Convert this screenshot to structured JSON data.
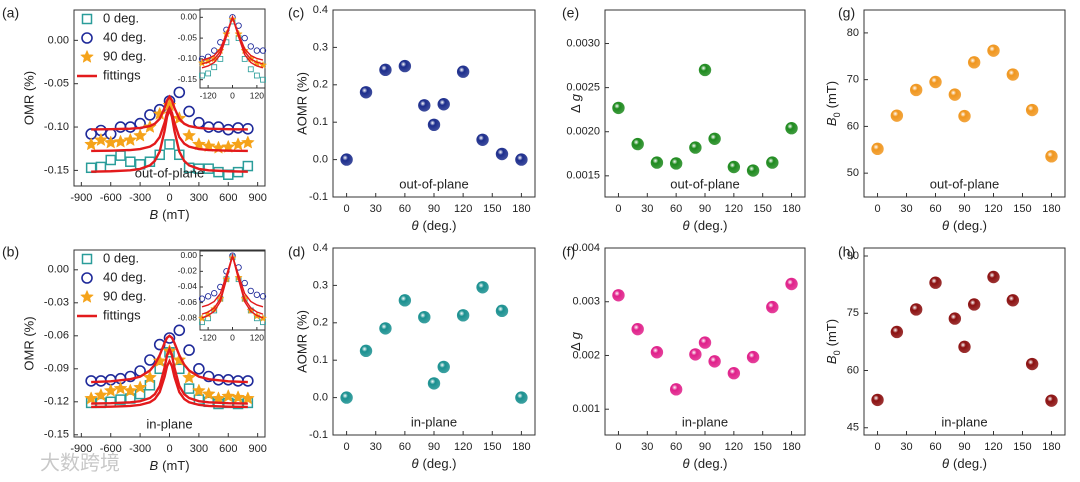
{
  "watermark": "大数跨境",
  "chart_data": [
    {
      "type": "scatter",
      "panel": "(a)",
      "x_label": [
        "B",
        "(mT)"
      ],
      "y_label": "OMR (%)",
      "annotation": "out-of-plane",
      "legend": "upper left",
      "xlim": [
        -975,
        975
      ],
      "xticks": [
        -900,
        -600,
        -300,
        0,
        300,
        600,
        900
      ],
      "ylim": [
        -0.168,
        0.035
      ],
      "yticks": [
        {
          "value": 0,
          "label": "0.00"
        },
        -0.05,
        {
          "value": -0.1,
          "label": "-0.10"
        },
        -0.15
      ],
      "x": [
        -800,
        -700,
        -600,
        -500,
        -400,
        -300,
        -200,
        -100,
        0,
        100,
        200,
        300,
        400,
        500,
        600,
        700,
        800
      ],
      "series": [
        {
          "name": "0 deg.",
          "color": "#2a9d9a",
          "marker": "square",
          "values": [
            -0.147,
            -0.146,
            -0.138,
            -0.133,
            -0.14,
            -0.143,
            -0.14,
            -0.132,
            -0.12,
            -0.132,
            -0.147,
            -0.148,
            -0.148,
            -0.152,
            -0.155,
            -0.152,
            -0.145
          ]
        },
        {
          "name": "40 deg.",
          "color": "#1f2a9a",
          "marker": "circle",
          "values": [
            -0.108,
            -0.104,
            -0.108,
            -0.1,
            -0.1,
            -0.096,
            -0.086,
            -0.08,
            -0.07,
            -0.06,
            -0.082,
            -0.095,
            -0.1,
            -0.1,
            -0.103,
            -0.101,
            -0.102
          ]
        },
        {
          "name": "90 deg.",
          "color": "#f5a31a",
          "marker": "star",
          "values": [
            -0.12,
            -0.115,
            -0.118,
            -0.117,
            -0.115,
            -0.11,
            -0.1,
            -0.085,
            -0.075,
            -0.09,
            -0.11,
            -0.12,
            -0.122,
            -0.124,
            -0.123,
            -0.12,
            -0.118
          ]
        },
        {
          "name": "fittings",
          "color": "#e31a1c",
          "marker": "line",
          "x": [
            -800,
            -600,
            -400,
            -300,
            -200,
            -150,
            -100,
            -50,
            -25,
            0,
            25,
            50,
            100,
            150,
            200,
            300,
            400,
            600,
            800
          ],
          "curves": [
            [
              -0.1515,
              -0.151,
              -0.1499,
              -0.1483,
              -0.1442,
              -0.1391,
              -0.1283,
              -0.1043,
              -0.0881,
              -0.08,
              -0.0881,
              -0.1043,
              -0.1283,
              -0.1391,
              -0.1442,
              -0.1483,
              -0.1499,
              -0.151,
              -0.1515
            ],
            [
              -0.1027,
              -0.1025,
              -0.1019,
              -0.101,
              -0.0989,
              -0.0962,
              -0.0905,
              -0.0778,
              -0.0693,
              -0.065,
              -0.0693,
              -0.0778,
              -0.0905,
              -0.0962,
              -0.0989,
              -0.101,
              -0.1019,
              -0.1025,
              -0.1027
            ],
            [
              -0.1276,
              -0.1273,
              -0.1265,
              -0.1254,
              -0.1226,
              -0.1191,
              -0.1116,
              -0.0949,
              -0.0836,
              -0.078,
              -0.0836,
              -0.0949,
              -0.1116,
              -0.1191,
              -0.1226,
              -0.1254,
              -0.1265,
              -0.1273,
              -0.1276
            ]
          ]
        }
      ]
    },
    {
      "type": "scatter",
      "xlim": [
        -160,
        160
      ],
      "xticks": [
        -120,
        0,
        120
      ],
      "ylim": [
        -0.17,
        0.02
      ],
      "yticks": [
        {
          "value": 0,
          "label": "0.00"
        },
        -0.05,
        {
          "value": -0.1,
          "label": "-0.10"
        },
        -0.15
      ],
      "x": [
        -150,
        -120,
        -90,
        -60,
        -30,
        0,
        30,
        60,
        90,
        120,
        150
      ],
      "series": [
        {
          "color": "#2a9d9a",
          "marker": "square",
          "values": [
            -0.14,
            -0.135,
            -0.12,
            -0.1,
            -0.06,
            -0.01,
            -0.05,
            -0.1,
            -0.125,
            -0.14,
            -0.15
          ]
        },
        {
          "color": "#1f2a9a",
          "marker": "circle",
          "values": [
            -0.1,
            -0.095,
            -0.08,
            -0.06,
            -0.03,
            0,
            -0.02,
            -0.05,
            -0.07,
            -0.08,
            -0.08
          ]
        },
        {
          "color": "#f5a31a",
          "marker": "star",
          "values": [
            -0.11,
            -0.105,
            -0.1,
            -0.08,
            -0.04,
            -0.005,
            -0.04,
            -0.08,
            -0.1,
            -0.11,
            -0.115
          ]
        },
        {
          "color": "#e31a1c",
          "marker": "line",
          "curves": [
            [
              -0.1214,
              -0.117,
              -0.1086,
              -0.0897,
              -0.0468,
              0,
              -0.0468,
              -0.0897,
              -0.1086,
              -0.117,
              -0.1214
            ],
            [
              -0.1027,
              -0.099,
              -0.0919,
              -0.0759,
              -0.0396,
              0,
              -0.0396,
              -0.0759,
              -0.0919,
              -0.099,
              -0.1027
            ],
            [
              -0.112,
              -0.108,
              -0.1002,
              -0.0828,
              -0.0432,
              0,
              -0.0432,
              -0.0828,
              -0.1002,
              -0.108,
              -0.112
            ]
          ]
        }
      ]
    },
    {
      "type": "scatter",
      "panel": "(b)",
      "x_label": [
        "B",
        "(mT)"
      ],
      "y_label": "OMR (%)",
      "annotation": "in-plane",
      "legend": "upper left",
      "xlim": [
        -975,
        975
      ],
      "xticks": [
        -900,
        -600,
        -300,
        0,
        300,
        600,
        900
      ],
      "ylim": [
        -0.152,
        0.018
      ],
      "yticks": [
        {
          "value": 0,
          "label": "0.00"
        },
        -0.03,
        -0.06,
        -0.09,
        {
          "value": -0.12,
          "label": "-0.12"
        },
        -0.15
      ],
      "x": [
        -800,
        -700,
        -600,
        -500,
        -400,
        -300,
        -200,
        -100,
        0,
        100,
        200,
        300,
        400,
        500,
        600,
        700,
        800
      ],
      "series": [
        {
          "name": "0 deg.",
          "color": "#2a9d9a",
          "marker": "square",
          "values": [
            -0.121,
            -0.121,
            -0.12,
            -0.118,
            -0.117,
            -0.113,
            -0.105,
            -0.09,
            -0.075,
            -0.09,
            -0.108,
            -0.118,
            -0.12,
            -0.122,
            -0.121,
            -0.122,
            -0.121
          ]
        },
        {
          "name": "40 deg.",
          "color": "#1f2a9a",
          "marker": "circle",
          "values": [
            -0.101,
            -0.101,
            -0.1,
            -0.099,
            -0.097,
            -0.092,
            -0.082,
            -0.068,
            -0.062,
            -0.055,
            -0.073,
            -0.09,
            -0.097,
            -0.1,
            -0.1,
            -0.101,
            -0.101
          ]
        },
        {
          "name": "90 deg.",
          "color": "#f5a31a",
          "marker": "star",
          "values": [
            -0.117,
            -0.114,
            -0.11,
            -0.108,
            -0.11,
            -0.107,
            -0.098,
            -0.083,
            -0.074,
            -0.082,
            -0.098,
            -0.11,
            -0.113,
            -0.117,
            -0.115,
            -0.116,
            -0.117
          ]
        },
        {
          "name": "fittings",
          "color": "#e31a1c",
          "marker": "line",
          "x": [
            -800,
            -600,
            -400,
            -300,
            -200,
            -150,
            -100,
            -50,
            -25,
            0,
            25,
            50,
            100,
            150,
            200,
            300,
            400,
            600,
            800
          ],
          "curves": [
            [
              -0.1247,
              -0.1244,
              -0.1238,
              -0.1228,
              -0.1204,
              -0.1175,
              -0.1112,
              -0.0972,
              -0.0877,
              -0.083,
              -0.0877,
              -0.0972,
              -0.1112,
              -0.1175,
              -0.1204,
              -0.1228,
              -0.1238,
              -0.1244,
              -0.1247
            ],
            [
              -0.1021,
              -0.1014,
              -0.0994,
              -0.0971,
              -0.0916,
              -0.0862,
              -0.0776,
              -0.0664,
              -0.0618,
              -0.06,
              -0.0618,
              -0.0664,
              -0.0776,
              -0.0862,
              -0.0916,
              -0.0971,
              -0.0994,
              -0.1014,
              -0.1021
            ],
            [
              -0.1216,
              -0.1213,
              -0.1205,
              -0.1194,
              -0.1166,
              -0.1131,
              -0.1056,
              -0.0889,
              -0.0777,
              -0.072,
              -0.0777,
              -0.0889,
              -0.1056,
              -0.1131,
              -0.1166,
              -0.1194,
              -0.1205,
              -0.1213,
              -0.1216
            ]
          ]
        }
      ]
    },
    {
      "type": "scatter",
      "xlim": [
        -160,
        160
      ],
      "xticks": [
        -120,
        0,
        120
      ],
      "ylim": [
        -0.095,
        0.006
      ],
      "yticks": [
        {
          "value": 0,
          "label": "0.00"
        },
        -0.02,
        -0.04,
        -0.06,
        -0.08
      ],
      "x": [
        -150,
        -120,
        -90,
        -60,
        -30,
        0,
        30,
        60,
        90,
        120,
        150
      ],
      "series": [
        {
          "color": "#2a9d9a",
          "marker": "square",
          "values": [
            -0.085,
            -0.08,
            -0.07,
            -0.055,
            -0.03,
            -0.002,
            -0.03,
            -0.055,
            -0.07,
            -0.08,
            -0.085
          ]
        },
        {
          "color": "#1f2a9a",
          "marker": "circle",
          "values": [
            -0.055,
            -0.052,
            -0.048,
            -0.04,
            -0.02,
            0,
            -0.015,
            -0.035,
            -0.045,
            -0.05,
            -0.052
          ]
        },
        {
          "color": "#f5a31a",
          "marker": "star",
          "values": [
            -0.08,
            -0.075,
            -0.068,
            -0.055,
            -0.03,
            -0.003,
            -0.028,
            -0.055,
            -0.07,
            -0.077,
            -0.08
          ]
        },
        {
          "color": "#e31a1c",
          "marker": "line",
          "curves": [
            [
              -0.0794,
              -0.0765,
              -0.071,
              -0.0588,
              -0.0306,
              0,
              -0.0306,
              -0.0588,
              -0.071,
              -0.0765,
              -0.0794
            ],
            [
              -0.0654,
              -0.063,
              -0.0585,
              -0.0484,
              -0.0252,
              0,
              -0.0252,
              -0.0484,
              -0.0585,
              -0.063,
              -0.0654
            ],
            [
              -0.0747,
              -0.072,
              -0.0668,
              -0.0554,
              -0.0288,
              0,
              -0.0288,
              -0.0554,
              -0.0668,
              -0.072,
              -0.0747
            ]
          ]
        }
      ]
    },
    {
      "type": "scatter",
      "panel": "(c)",
      "x_label": [
        "θ",
        "(deg.)"
      ],
      "y_label": "AOMR (%)",
      "annotation": "out-of-plane",
      "xlim": [
        -14,
        194
      ],
      "xticks": [
        0,
        30,
        60,
        90,
        120,
        150,
        180
      ],
      "ylim": [
        -0.1,
        0.4
      ],
      "yticks": [
        -0.1,
        {
          "value": 0,
          "label": "0.0"
        },
        0.1,
        0.2,
        0.3,
        0.4
      ],
      "x": [
        0,
        20,
        40,
        60,
        80,
        90,
        100,
        120,
        140,
        160,
        180
      ],
      "series": [
        {
          "color": "#1c2d8c",
          "marker": "sphere",
          "values": [
            0,
            0.18,
            0.24,
            0.25,
            0.145,
            0.093,
            0.148,
            0.235,
            0.053,
            0.015,
            0
          ]
        }
      ]
    },
    {
      "type": "scatter",
      "panel": "(d)",
      "x_label": [
        "θ",
        "(deg.)"
      ],
      "y_label": "AOMR (%)",
      "annotation": "in-plane",
      "xlim": [
        -14,
        194
      ],
      "xticks": [
        0,
        30,
        60,
        90,
        120,
        150,
        180
      ],
      "ylim": [
        -0.1,
        0.4
      ],
      "yticks": [
        -0.1,
        {
          "value": 0,
          "label": "0.0"
        },
        0.1,
        0.2,
        0.3,
        0.4
      ],
      "x": [
        0,
        20,
        40,
        60,
        80,
        90,
        100,
        120,
        140,
        160,
        180
      ],
      "series": [
        {
          "color": "#1a9090",
          "marker": "sphere",
          "values": [
            0,
            0.125,
            0.185,
            0.26,
            0.215,
            0.038,
            0.082,
            0.22,
            0.295,
            0.232,
            0
          ]
        }
      ]
    },
    {
      "type": "scatter",
      "panel": "(e)",
      "x_label": [
        "θ",
        "(deg.)"
      ],
      "y_label": [
        "Δ",
        "g"
      ],
      "annotation": "out-of-plane",
      "xlim": [
        -14,
        194
      ],
      "xticks": [
        0,
        30,
        60,
        90,
        120,
        150,
        180
      ],
      "ylim": [
        0.00126,
        0.00338
      ],
      "yticks": [
        0.0015,
        {
          "value": 0.002,
          "label": "0.0020"
        },
        0.0025,
        {
          "value": 0.003,
          "label": "0.0030"
        }
      ],
      "x": [
        0,
        20,
        40,
        60,
        80,
        90,
        100,
        120,
        140,
        160,
        180
      ],
      "series": [
        {
          "color": "#1e8a1e",
          "marker": "sphere",
          "values": [
            0.00227,
            0.00186,
            0.00165,
            0.00164,
            0.00182,
            0.0027,
            0.00192,
            0.0016,
            0.00156,
            0.00165,
            0.00204
          ]
        }
      ]
    },
    {
      "type": "scatter",
      "panel": "(f)",
      "x_label": [
        "θ",
        "(deg.)"
      ],
      "y_label": [
        "Δ",
        "g"
      ],
      "annotation": "in-plane",
      "xlim": [
        -14,
        194
      ],
      "xticks": [
        0,
        30,
        60,
        90,
        120,
        150,
        180
      ],
      "ylim": [
        0.00052,
        0.004
      ],
      "yticks": [
        0.001,
        0.002,
        0.003,
        0.004
      ],
      "x": [
        0,
        20,
        40,
        60,
        80,
        90,
        100,
        120,
        140,
        160,
        180
      ],
      "series": [
        {
          "color": "#e0208a",
          "marker": "sphere",
          "values": [
            0.00312,
            0.00249,
            0.00206,
            0.00137,
            0.00202,
            0.00224,
            0.00189,
            0.00167,
            0.00197,
            0.0029,
            0.00333
          ]
        }
      ]
    },
    {
      "type": "scatter",
      "panel": "(g)",
      "x_label": [
        "θ",
        "(deg.)"
      ],
      "y_label": [
        "B",
        "0",
        "(mT)"
      ],
      "annotation": "out-of-plane",
      "xlim": [
        -14,
        194
      ],
      "xticks": [
        0,
        30,
        60,
        90,
        120,
        150,
        180
      ],
      "ylim": [
        44.9,
        84.9
      ],
      "yticks": [
        50,
        60,
        70,
        80
      ],
      "x": [
        0,
        20,
        40,
        60,
        80,
        90,
        100,
        120,
        140,
        160,
        180
      ],
      "series": [
        {
          "color": "#f0961e",
          "marker": "sphere",
          "values": [
            55.2,
            62.3,
            67.8,
            69.5,
            66.8,
            62.2,
            73.7,
            76.2,
            71.1,
            63.5,
            53.6
          ]
        }
      ]
    },
    {
      "type": "scatter",
      "panel": "(h)",
      "x_label": [
        "θ",
        "(deg.)"
      ],
      "y_label": [
        "B",
        "0",
        "(mT)"
      ],
      "annotation": "in-plane",
      "xlim": [
        -14,
        194
      ],
      "xticks": [
        0,
        30,
        60,
        90,
        120,
        150,
        180
      ],
      "ylim": [
        43.1,
        92.1
      ],
      "yticks": [
        45,
        60,
        75,
        90
      ],
      "x": [
        0,
        20,
        40,
        60,
        80,
        90,
        100,
        120,
        140,
        160,
        180
      ],
      "series": [
        {
          "color": "#8b1010",
          "marker": "sphere",
          "values": [
            52.3,
            70.1,
            76.0,
            83.0,
            73.6,
            66.2,
            77.3,
            84.5,
            78.4,
            61.7,
            52.1
          ]
        }
      ]
    }
  ]
}
